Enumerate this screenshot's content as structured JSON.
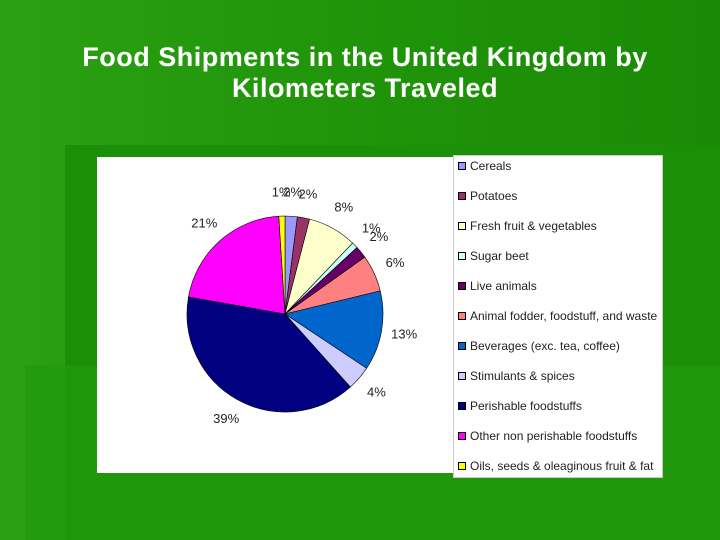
{
  "chart_data": {
    "type": "pie",
    "title": "Food Shipments in the United Kingdom by Kilometers Traveled",
    "categories": [
      "Cereals",
      "Potatoes",
      "Fresh fruit & vegetables",
      "Sugar beet",
      "Live animals",
      "Animal fodder, foodstuff, and waste",
      "Beverages (exc. tea, coffee)",
      "Stimulants & spices",
      "Perishable foodstuffs",
      "Other non perishable foodstuffs",
      "Oils, seeds & oleaginous fruit & fat"
    ],
    "values": [
      2,
      2,
      8,
      1,
      2,
      6,
      13,
      4,
      39,
      21,
      1
    ],
    "value_labels": [
      "2%",
      "2%",
      "8%",
      "1%",
      "2%",
      "6%",
      "13%",
      "4%",
      "39%",
      "21%",
      "1%"
    ],
    "colors": [
      "#9999ff",
      "#993366",
      "#ffffcc",
      "#ccffff",
      "#660066",
      "#ff8080",
      "#0066cc",
      "#ccccff",
      "#000080",
      "#ff00ff",
      "#ffff00"
    ]
  }
}
